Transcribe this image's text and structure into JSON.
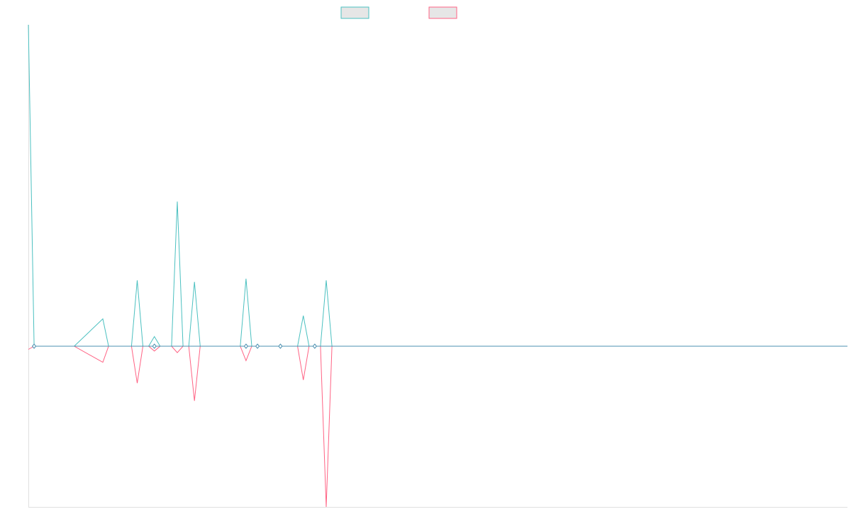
{
  "colors": {
    "series_a": "#4bc0c0",
    "series_b": "#ff6384",
    "swatch_fill": "#e6e6e6",
    "axis": "#e0e0e0",
    "baseline": "#4b90b0"
  },
  "chart_data": {
    "type": "line",
    "title": "",
    "xlabel": "",
    "ylabel": "",
    "x_count": 144,
    "ylim": [
      -1.0,
      2.0
    ],
    "grid": false,
    "legend_placement": "top-center",
    "series": [
      {
        "name": "",
        "color": "#4bc0c0",
        "points": [
          [
            0,
            2.0
          ],
          [
            1,
            0.0
          ],
          [
            8,
            0.0
          ],
          [
            13,
            0.17
          ],
          [
            14,
            0.0
          ],
          [
            18,
            0.0
          ],
          [
            19,
            0.41
          ],
          [
            20,
            0.0
          ],
          [
            21,
            0.0
          ],
          [
            22,
            0.06
          ],
          [
            23,
            0.0
          ],
          [
            24,
            0.0
          ],
          [
            25,
            0.0
          ],
          [
            26,
            0.9
          ],
          [
            27,
            0.0
          ],
          [
            28,
            0.0
          ],
          [
            29,
            0.4
          ],
          [
            30,
            0.0
          ],
          [
            37,
            0.0
          ],
          [
            38,
            0.42
          ],
          [
            39,
            0.0
          ],
          [
            40,
            0.0
          ],
          [
            41,
            0.0
          ],
          [
            44,
            0.0
          ],
          [
            47,
            0.0
          ],
          [
            48,
            0.19
          ],
          [
            49,
            0.0
          ],
          [
            50,
            0.0
          ],
          [
            51,
            0.0
          ],
          [
            52,
            0.41
          ],
          [
            53,
            0.0
          ],
          [
            143,
            0.0
          ]
        ]
      },
      {
        "name": "",
        "color": "#ff6384",
        "points": [
          [
            0,
            -0.02
          ],
          [
            1,
            0.0
          ],
          [
            8,
            0.0
          ],
          [
            13,
            -0.1
          ],
          [
            14,
            0.0
          ],
          [
            18,
            0.0
          ],
          [
            19,
            -0.23
          ],
          [
            20,
            0.0
          ],
          [
            21,
            0.0
          ],
          [
            22,
            -0.03
          ],
          [
            23,
            0.0
          ],
          [
            24,
            0.0
          ],
          [
            25,
            0.0
          ],
          [
            26,
            -0.04
          ],
          [
            27,
            0.0
          ],
          [
            28,
            0.0
          ],
          [
            29,
            -0.34
          ],
          [
            30,
            0.0
          ],
          [
            37,
            0.0
          ],
          [
            38,
            -0.09
          ],
          [
            39,
            0.0
          ],
          [
            40,
            0.0
          ],
          [
            41,
            0.0
          ],
          [
            44,
            0.0
          ],
          [
            47,
            0.0
          ],
          [
            48,
            -0.21
          ],
          [
            49,
            0.0
          ],
          [
            50,
            0.0
          ],
          [
            51,
            0.0
          ],
          [
            52,
            -1.0
          ],
          [
            53,
            0.0
          ],
          [
            143,
            0.0
          ]
        ]
      }
    ],
    "markers": [
      {
        "x": 1,
        "y": 0.0
      },
      {
        "x": 22,
        "y": 0.0
      },
      {
        "x": 38,
        "y": 0.0
      },
      {
        "x": 40,
        "y": 0.0
      },
      {
        "x": 44,
        "y": 0.0
      },
      {
        "x": 50,
        "y": 0.0
      }
    ]
  }
}
